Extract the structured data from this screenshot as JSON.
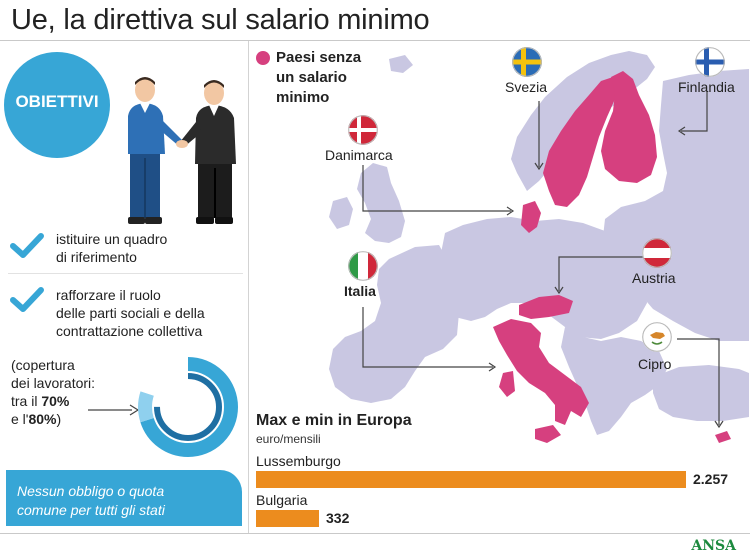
{
  "title": "Ue, la direttiva sul salario minimo",
  "objectives": {
    "badge": "OBIETTIVI",
    "goal1_line1": "istituire un quadro",
    "goal1_line2": "di riferimento",
    "goal2_line1": "rafforzare il ruolo",
    "goal2_line2": "delle parti sociali e della",
    "goal2_line3": "contrattazione collettiva",
    "coverage_line1": "(copertura",
    "coverage_line2": "dei lavoratori:",
    "coverage_line3a": "tra il ",
    "coverage_line3b": "70%",
    "coverage_line4a": "e l'",
    "coverage_line4b": "80%",
    "coverage_line4c": ")",
    "coverage_range": [
      0.7,
      0.8
    ],
    "note_line1": "Nessun obbligo o quota",
    "note_line2": "comune per tutti gli stati"
  },
  "map": {
    "legend_line1": "Paesi senza",
    "legend_line2": "un salario",
    "legend_line3": "minimo",
    "countries": {
      "svezia": "Svezia",
      "finlandia": "Finlandia",
      "danimarca": "Danimarca",
      "italia": "Italia",
      "austria": "Austria",
      "cipro": "Cipro"
    }
  },
  "chart_data": {
    "type": "bar",
    "title": "Max e min in Europa",
    "subtitle": "euro/mensili",
    "categories": [
      "Lussemburgo",
      "Bulgaria"
    ],
    "values": [
      2257,
      332
    ],
    "value_labels": [
      "2.257",
      "332"
    ]
  },
  "colors": {
    "accent_blue": "#37a6d6",
    "highlight": "#d6407f",
    "land": "#c9c7e2",
    "bar": "#ec8c1e"
  },
  "logo": "ANSA"
}
